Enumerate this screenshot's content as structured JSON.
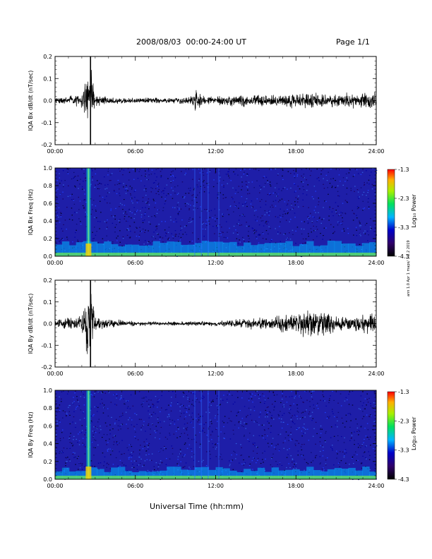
{
  "header": {
    "title": "2008/08/03  00:00-24:00 UT",
    "page": "Page 1/1"
  },
  "footer": {
    "xlabel": "Universal Time (hh:mm)",
    "side_note": "ann 1.0 Apr 1 maps/ 1.2.2 2019"
  },
  "colors": {
    "spectrogram_background": "#1e1ea8",
    "trace": "#000000",
    "colorbar_top": "#ff0000",
    "colorbar_bottom": "#000000"
  },
  "chart_data": [
    {
      "type": "line",
      "ylabel": "IQA Bx dB/dt (nT/sec)",
      "ylim": [
        -0.2,
        0.2
      ],
      "yticks": [
        "0.2",
        "0.1",
        "0.0",
        "-0.1",
        "-0.2"
      ],
      "xlim": [
        "00:00",
        "24:00"
      ],
      "xticks": [
        "00:00",
        "06:00",
        "12:00",
        "18:00",
        "24:00"
      ],
      "envelope_hours": [
        0,
        1,
        2,
        2.5,
        2.7,
        3,
        4,
        6,
        8,
        10,
        10.5,
        11,
        12,
        14,
        16,
        18,
        19,
        20,
        21,
        22,
        23,
        24
      ],
      "envelope_amplitude": [
        0.02,
        0.025,
        0.04,
        0.2,
        0.2,
        0.04,
        0.02,
        0.015,
        0.015,
        0.02,
        0.07,
        0.03,
        0.025,
        0.035,
        0.04,
        0.04,
        0.05,
        0.045,
        0.04,
        0.04,
        0.05,
        0.05
      ]
    },
    {
      "type": "heatmap",
      "ylabel": "IQA Bx Freq (Hz)",
      "ylim": [
        0.0,
        1.0
      ],
      "yticks": [
        "1.0",
        "0.8",
        "0.6",
        "0.4",
        "0.2",
        "0.0"
      ],
      "xlim": [
        "00:00",
        "24:00"
      ],
      "xticks": [
        "00:00",
        "06:00",
        "12:00",
        "18:00",
        "24:00"
      ],
      "colorbar": {
        "label": "Log₁₀ Power",
        "range": [
          -4.3,
          -1.3
        ],
        "ticks": [
          "-1.3",
          "-2.3",
          "-3.3",
          "-4.3"
        ]
      },
      "features": "broadband enhancement near 02:30 UT; low-frequency band below 0.1 Hz throughout"
    },
    {
      "type": "line",
      "ylabel": "IQA By dB/dt (nT/sec)",
      "ylim": [
        -0.2,
        0.2
      ],
      "yticks": [
        "0.2",
        "0.1",
        "0.0",
        "-0.1",
        "-0.2"
      ],
      "xlim": [
        "00:00",
        "24:00"
      ],
      "xticks": [
        "00:00",
        "06:00",
        "12:00",
        "18:00",
        "24:00"
      ],
      "envelope_hours": [
        0,
        1,
        2,
        2.5,
        2.7,
        3,
        4,
        6,
        8,
        10,
        12,
        14,
        16,
        18,
        19,
        20,
        21,
        22,
        23,
        24
      ],
      "envelope_amplitude": [
        0.02,
        0.04,
        0.06,
        0.2,
        0.2,
        0.05,
        0.025,
        0.015,
        0.01,
        0.015,
        0.015,
        0.03,
        0.04,
        0.06,
        0.08,
        0.07,
        0.05,
        0.04,
        0.06,
        0.05
      ]
    },
    {
      "type": "heatmap",
      "ylabel": "IQA By Freq (Hz)",
      "ylim": [
        0.0,
        1.0
      ],
      "yticks": [
        "1.0",
        "0.8",
        "0.6",
        "0.4",
        "0.2",
        "0.0"
      ],
      "xlim": [
        "00:00",
        "24:00"
      ],
      "xticks": [
        "00:00",
        "06:00",
        "12:00",
        "18:00",
        "24:00"
      ],
      "colorbar": {
        "label": "Log₁₀ Power",
        "range": [
          -4.3,
          -1.3
        ],
        "ticks": [
          "-1.3",
          "-2.3",
          "-3.3",
          "-4.3"
        ]
      },
      "features": "broadband enhancement near 02:30 UT; low-frequency band below 0.1 Hz throughout"
    }
  ]
}
